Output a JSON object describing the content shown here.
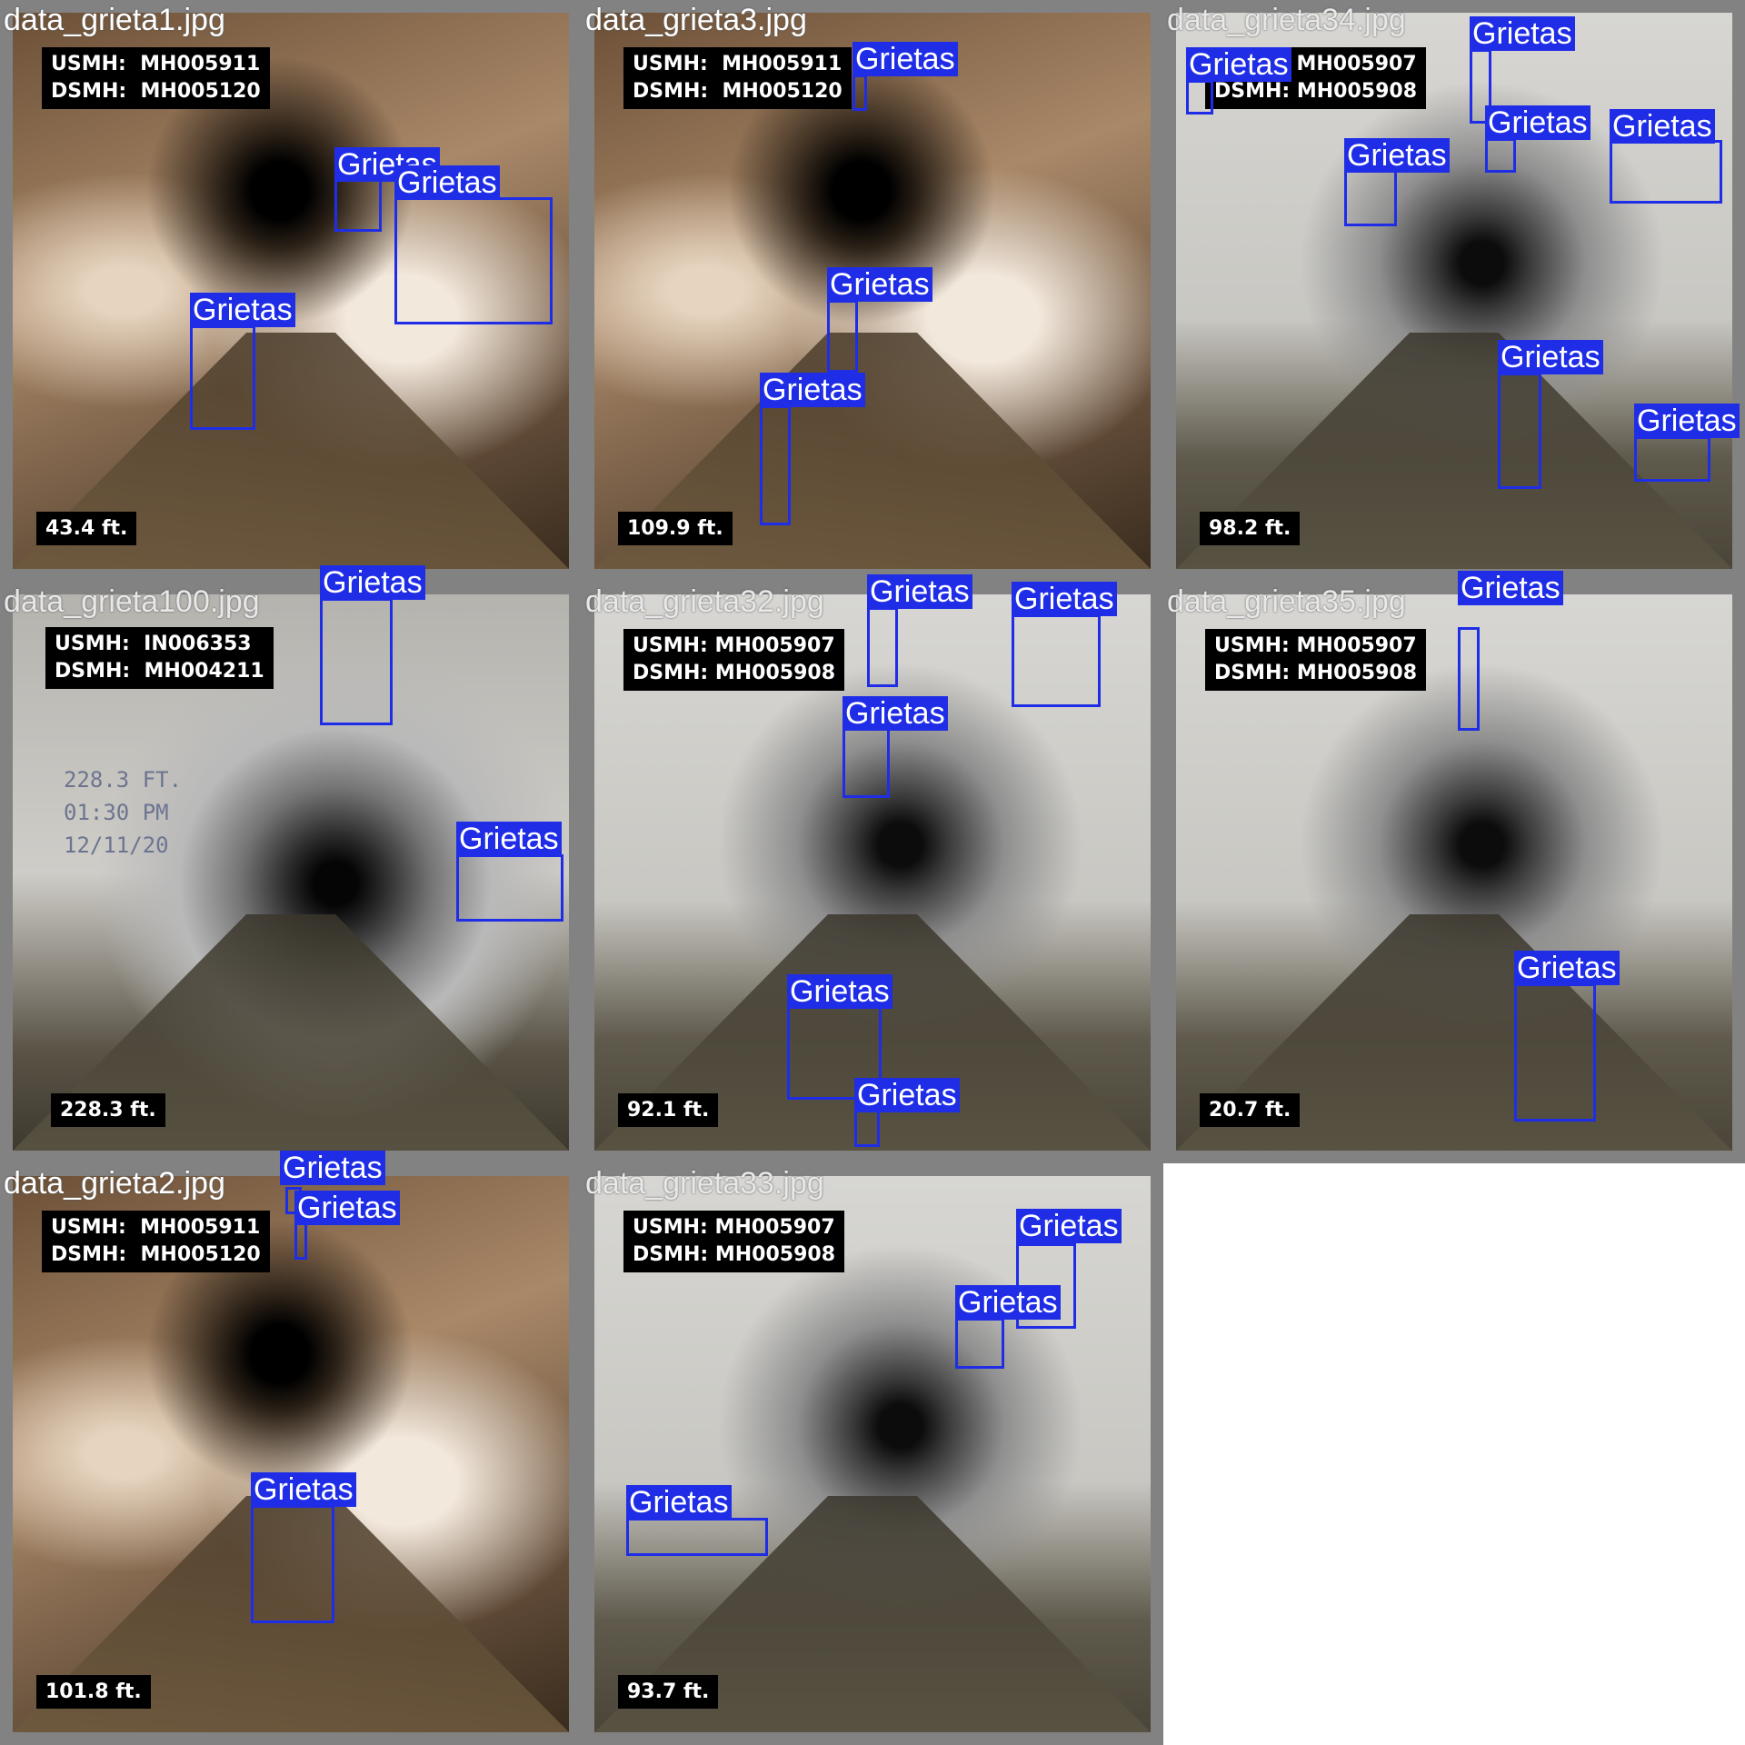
{
  "tiles": [
    {
      "caption": "data_grieta1.jpg",
      "usmh": "USMH:  MH005911",
      "dsmh": "DSMH:  MH005120",
      "distance": "43.4  ft."
    },
    {
      "caption": "data_grieta3.jpg",
      "usmh": "USMH:  MH005911",
      "dsmh": "DSMH:  MH005120",
      "distance": "109.9  ft."
    },
    {
      "caption": "data_grieta34.jpg",
      "usmh": "USMH: MH005907",
      "dsmh": "DSMH: MH005908",
      "distance": "98.2 ft."
    },
    {
      "caption": "data_grieta100.jpg",
      "usmh": "USMH:  IN006353",
      "dsmh": "DSMH:  MH004211",
      "distance": "228.3  ft.",
      "overlay_extra": "228.3 FT.\n01:30 PM\n12/11/20"
    },
    {
      "caption": "data_grieta32.jpg",
      "usmh": "USMH: MH005907",
      "dsmh": "DSMH: MH005908",
      "distance": "92.1 ft."
    },
    {
      "caption": "data_grieta35.jpg",
      "usmh": "USMH: MH005907",
      "dsmh": "DSMH: MH005908",
      "distance": "20.7 ft."
    },
    {
      "caption": "data_grieta2.jpg",
      "usmh": "USMH:  MH005911",
      "dsmh": "DSMH:  MH005120",
      "distance": "101.8  ft."
    },
    {
      "caption": "data_grieta33.jpg",
      "usmh": "USMH: MH005907",
      "dsmh": "DSMH: MH005908",
      "distance": "93.7 ft."
    }
  ],
  "detection_label": "Grietas",
  "colors": {
    "box": "#1f2ee6",
    "tile_frame": "#828282"
  }
}
